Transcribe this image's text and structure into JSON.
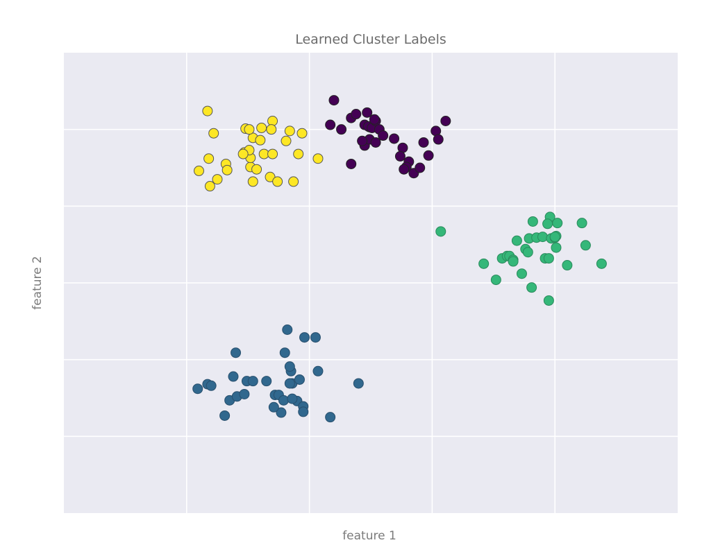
{
  "chart_data": {
    "type": "scatter",
    "title": "Learned Cluster Labels",
    "xlabel": "feature 1",
    "ylabel": "feature 2",
    "xlim": [
      -2.5,
      2.5
    ],
    "ylim": [
      -3,
      3
    ],
    "xticks": [
      -1.5,
      -0.5,
      0.5,
      1.5
    ],
    "yticks": [
      -2,
      -1,
      0,
      1,
      2
    ],
    "tick_labels_visible": false,
    "grid": true,
    "legend": "none",
    "series": [
      {
        "color": "#fde725",
        "edge": "#555555",
        "points": [
          [
            -1.33,
            2.24
          ],
          [
            -1.28,
            1.95
          ],
          [
            -1.32,
            1.62
          ],
          [
            -1.4,
            1.46
          ],
          [
            -1.31,
            1.26
          ],
          [
            -1.25,
            1.35
          ],
          [
            -1.03,
            1.7
          ],
          [
            -0.96,
            1.89
          ],
          [
            -0.98,
            1.51
          ],
          [
            -0.98,
            1.63
          ],
          [
            -0.99,
            1.73
          ],
          [
            -0.87,
            1.68
          ],
          [
            -0.9,
            1.86
          ],
          [
            -0.8,
            2.11
          ],
          [
            -0.81,
            2.0
          ],
          [
            -0.89,
            2.02
          ],
          [
            -0.8,
            1.68
          ],
          [
            -0.69,
            1.85
          ],
          [
            -0.59,
            1.68
          ],
          [
            -0.56,
            1.95
          ],
          [
            -0.66,
            1.98
          ],
          [
            -0.96,
            1.32
          ],
          [
            -0.93,
            1.48
          ],
          [
            -1.04,
            1.68
          ],
          [
            -1.18,
            1.55
          ],
          [
            -0.82,
            1.38
          ],
          [
            -0.63,
            1.32
          ],
          [
            -1.17,
            1.47
          ],
          [
            -0.76,
            1.32
          ],
          [
            -0.43,
            1.62
          ],
          [
            -1.02,
            2.01
          ],
          [
            -0.99,
            2.0
          ]
        ]
      },
      {
        "color": "#440154",
        "edge": "#222222",
        "points": [
          [
            -0.3,
            2.38
          ],
          [
            -0.33,
            2.06
          ],
          [
            -0.24,
            2.0
          ],
          [
            -0.16,
            2.15
          ],
          [
            -0.12,
            2.2
          ],
          [
            -0.05,
            2.06
          ],
          [
            -0.01,
            2.03
          ],
          [
            -0.02,
            2.04
          ],
          [
            -0.03,
            2.22
          ],
          [
            0.01,
            2.02
          ],
          [
            0.04,
            2.11
          ],
          [
            0.03,
            2.13
          ],
          [
            0.07,
            2.0
          ],
          [
            0.1,
            1.92
          ],
          [
            0.19,
            1.88
          ],
          [
            0.26,
            1.76
          ],
          [
            0.31,
            1.58
          ],
          [
            0.35,
            1.43
          ],
          [
            0.43,
            1.83
          ],
          [
            0.53,
            1.98
          ],
          [
            0.61,
            2.11
          ],
          [
            0.55,
            1.87
          ],
          [
            0.47,
            1.66
          ],
          [
            0.4,
            1.5
          ],
          [
            0.24,
            1.65
          ],
          [
            0.29,
            1.51
          ],
          [
            0.27,
            1.48
          ],
          [
            -0.16,
            1.55
          ],
          [
            -0.05,
            1.79
          ],
          [
            -0.01,
            1.87
          ],
          [
            -0.07,
            1.85
          ],
          [
            0.04,
            1.83
          ]
        ]
      },
      {
        "color": "#35b779",
        "edge": "#2a8a5c",
        "points": [
          [
            0.57,
            0.67
          ],
          [
            0.92,
            0.25
          ],
          [
            1.02,
            0.04
          ],
          [
            1.07,
            0.32
          ],
          [
            1.11,
            0.35
          ],
          [
            1.13,
            0.35
          ],
          [
            1.16,
            0.3
          ],
          [
            1.19,
            0.55
          ],
          [
            1.23,
            0.12
          ],
          [
            1.26,
            0.44
          ],
          [
            1.29,
            0.58
          ],
          [
            1.32,
            0.8
          ],
          [
            1.35,
            0.59
          ],
          [
            1.4,
            0.6
          ],
          [
            1.42,
            0.32
          ],
          [
            1.46,
            0.86
          ],
          [
            1.47,
            0.58
          ],
          [
            1.44,
            0.77
          ],
          [
            1.5,
            0.59
          ],
          [
            1.51,
            0.46
          ],
          [
            1.51,
            0.61
          ],
          [
            1.52,
            0.78
          ],
          [
            1.6,
            0.23
          ],
          [
            1.72,
            0.78
          ],
          [
            1.75,
            0.49
          ],
          [
            1.88,
            0.25
          ],
          [
            1.45,
            0.32
          ],
          [
            1.16,
            0.28
          ],
          [
            1.5,
            0.6
          ],
          [
            1.28,
            0.4
          ],
          [
            1.31,
            -0.06
          ],
          [
            1.45,
            -0.23
          ]
        ]
      },
      {
        "color": "#31688e",
        "edge": "#284f6d",
        "points": [
          [
            -1.41,
            -1.38
          ],
          [
            -1.33,
            -1.32
          ],
          [
            -1.3,
            -1.34
          ],
          [
            -1.19,
            -1.73
          ],
          [
            -1.15,
            -1.53
          ],
          [
            -1.09,
            -1.48
          ],
          [
            -1.01,
            -1.28
          ],
          [
            -1.12,
            -1.22
          ],
          [
            -1.03,
            -1.45
          ],
          [
            -0.96,
            -1.28
          ],
          [
            -0.85,
            -1.28
          ],
          [
            -0.78,
            -1.46
          ],
          [
            -0.75,
            -1.46
          ],
          [
            -0.71,
            -1.53
          ],
          [
            -0.6,
            -1.54
          ],
          [
            -0.65,
            -1.15
          ],
          [
            -0.73,
            -1.69
          ],
          [
            -0.64,
            -1.31
          ],
          [
            -0.66,
            -1.09
          ],
          [
            -0.58,
            -1.26
          ],
          [
            -0.55,
            -1.61
          ],
          [
            -0.55,
            -1.68
          ],
          [
            -0.43,
            -1.15
          ],
          [
            -0.33,
            -1.75
          ],
          [
            -0.7,
            -0.91
          ],
          [
            -0.54,
            -0.71
          ],
          [
            -1.1,
            -0.91
          ],
          [
            -0.79,
            -1.62
          ],
          [
            -0.66,
            -1.31
          ],
          [
            -0.68,
            -0.61
          ],
          [
            -0.45,
            -0.71
          ],
          [
            -0.64,
            -1.51
          ],
          [
            -0.1,
            -1.31
          ]
        ]
      }
    ]
  }
}
